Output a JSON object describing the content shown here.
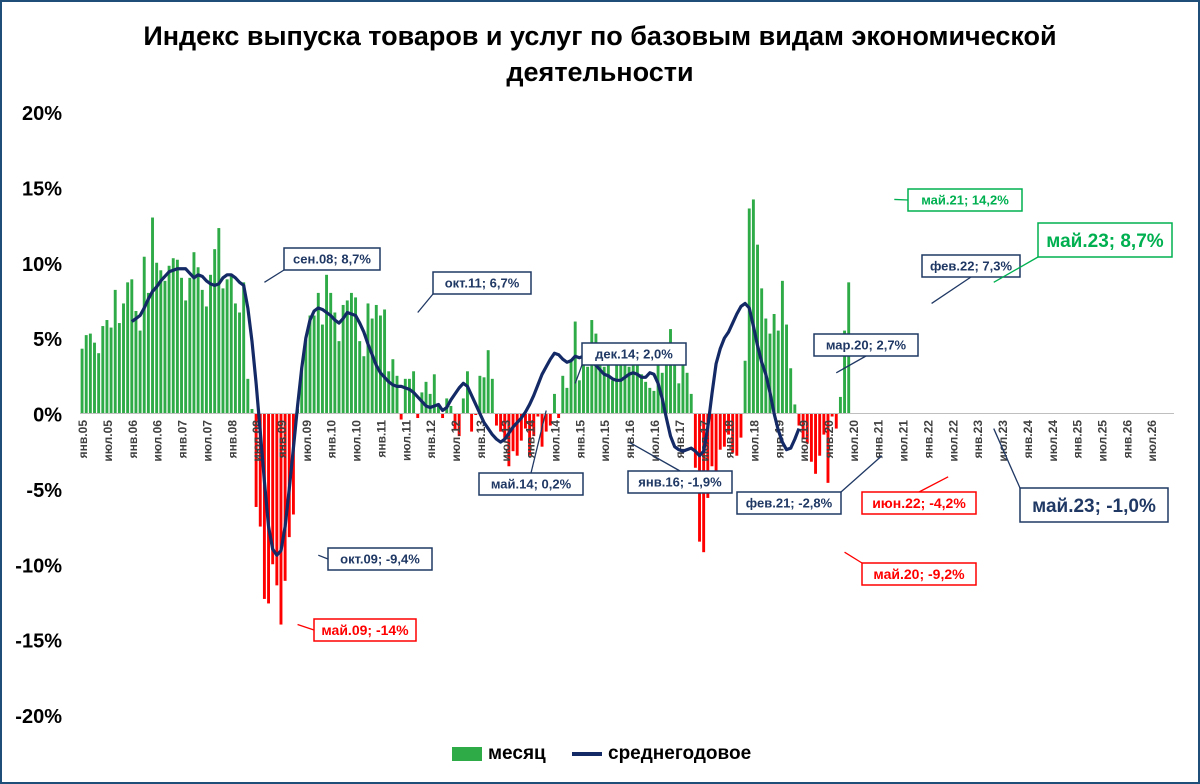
{
  "chart_data": {
    "type": "bar",
    "title_lines": [
      "Индекс выпуска товаров и услуг по базовым видам экономической",
      "деятельности"
    ],
    "ylim": [
      -20,
      20
    ],
    "yticks": [
      20,
      15,
      10,
      5,
      0,
      -5,
      -10,
      -15,
      -20
    ],
    "ytick_labels": [
      "20%",
      "15%",
      "10%",
      "5%",
      "0%",
      "-5%",
      "-10%",
      "-15%",
      "-20%"
    ],
    "grid": false,
    "legend_position": "bottom",
    "x_start": "янв.05",
    "x_labels": [
      "янв.05",
      "июл.05",
      "янв.06",
      "июл.06",
      "янв.07",
      "июл.07",
      "янв.08",
      "июл.08",
      "янв.09",
      "июл.09",
      "янв.10",
      "июл.10",
      "янв.11",
      "июл.11",
      "янв.12",
      "июл.12",
      "янв.13",
      "июл.13",
      "янв.14",
      "июл.14",
      "янв.15",
      "июл.15",
      "янв.16",
      "июл.16",
      "янв.17",
      "июл.17",
      "янв.18",
      "июл.18",
      "янв.19",
      "июл.19",
      "янв.20",
      "июл.20",
      "янв.21",
      "июл.21",
      "янв.22",
      "июл.22",
      "янв.23",
      "июл.23",
      "янв.24",
      "июл.24",
      "янв.25",
      "июл.25",
      "янв.26",
      "июл.26"
    ],
    "colors": {
      "positive": "#2eaa46",
      "negative": "#ff0000",
      "line": "#142a66",
      "green_callout": "#00b050",
      "red_callout": "#ff0000",
      "navy_callout": "#1f3864"
    },
    "series": [
      {
        "name": "месяц",
        "type": "bar",
        "values": [
          4.3,
          5.2,
          5.3,
          4.7,
          4.0,
          5.8,
          6.2,
          5.7,
          8.2,
          6.0,
          7.3,
          8.7,
          8.9,
          6.8,
          5.5,
          10.4,
          8.0,
          13.0,
          10.0,
          9.5,
          8.8,
          9.8,
          10.3,
          10.2,
          9.0,
          7.5,
          9.0,
          10.7,
          9.7,
          8.2,
          7.1,
          9.2,
          10.9,
          12.3,
          8.3,
          8.9,
          9.2,
          7.3,
          6.7,
          8.7,
          2.3,
          0.3,
          -6.2,
          -7.5,
          -12.3,
          -12.6,
          -10.0,
          -11.4,
          -14.0,
          -11.1,
          -8.2,
          -6.7,
          0.3,
          3.0,
          4.9,
          6.5,
          6.5,
          8.0,
          5.9,
          9.2,
          8.0,
          6.7,
          4.8,
          7.2,
          7.5,
          8.0,
          7.7,
          4.8,
          3.8,
          7.3,
          6.3,
          7.2,
          6.5,
          6.9,
          2.8,
          3.6,
          2.5,
          -0.4,
          2.3,
          2.3,
          2.8,
          -0.3,
          1.4,
          2.1,
          1.3,
          2.6,
          0.5,
          -0.3,
          1.0,
          0.5,
          -1.1,
          -1.5,
          1.0,
          2.8,
          -1.2,
          -0.1,
          2.5,
          2.4,
          4.2,
          2.3,
          -0.8,
          -1.2,
          -1.8,
          -3.5,
          -2.5,
          -2.8,
          -1.8,
          -1.0,
          -2.8,
          -1.5,
          -0.2,
          -2.2,
          -1.2,
          -0.8,
          1.3,
          -0.3,
          2.5,
          1.7,
          3.6,
          6.1,
          2.2,
          4.5,
          3.1,
          6.2,
          5.3,
          4.2,
          3.1,
          3.6,
          2.2,
          3.7,
          4.4,
          4.3,
          3.1,
          3.6,
          4.0,
          2.6,
          2.1,
          1.7,
          1.5,
          3.2,
          2.7,
          3.5,
          5.6,
          4.2,
          2.0,
          3.6,
          2.7,
          1.3,
          -3.6,
          -8.5,
          -9.2,
          -5.6,
          -3.5,
          -4.4,
          -2.4,
          -2.2,
          -1.4,
          -2.6,
          -2.8,
          -1.6,
          3.5,
          13.6,
          14.2,
          11.2,
          8.3,
          6.3,
          5.3,
          6.6,
          5.5,
          8.8,
          5.9,
          3.0,
          0.6,
          -0.8,
          -1.7,
          -2.0,
          -3.2,
          -4.0,
          -2.8,
          -1.4,
          -4.6,
          -0.2,
          -1.0,
          1.1,
          5.5,
          8.7
        ]
      },
      {
        "name": "среднегодовое",
        "type": "line",
        "start_index": 12,
        "values": [
          6.1,
          6.3,
          6.5,
          7.0,
          7.6,
          8.1,
          8.4,
          8.8,
          9.1,
          9.4,
          9.5,
          9.6,
          9.6,
          9.6,
          9.3,
          9.0,
          9.2,
          9.1,
          8.8,
          8.6,
          8.5,
          8.6,
          9.0,
          9.2,
          9.2,
          9.0,
          8.7,
          8.5,
          7.0,
          4.8,
          2.0,
          -1.2,
          -4.5,
          -7.5,
          -9.0,
          -9.4,
          -9.1,
          -7.5,
          -5.0,
          -2.3,
          0.5,
          3.0,
          5.0,
          6.2,
          6.8,
          7.0,
          6.9,
          6.7,
          6.5,
          6.2,
          6.0,
          6.3,
          6.7,
          6.6,
          6.5,
          6.0,
          5.4,
          4.6,
          3.9,
          3.2,
          2.7,
          2.4,
          2.1,
          1.9,
          1.8,
          1.8,
          1.7,
          1.6,
          1.4,
          1.1,
          0.8,
          0.5,
          0.4,
          0.5,
          0.6,
          0.2,
          0.4,
          0.9,
          1.3,
          1.7,
          2.0,
          1.8,
          1.2,
          0.6,
          0.0,
          -0.6,
          -1.0,
          -1.4,
          -1.7,
          -1.9,
          -1.7,
          -1.3,
          -0.9,
          -0.6,
          -0.3,
          0.1,
          0.6,
          1.2,
          1.9,
          2.6,
          3.1,
          3.6,
          4.0,
          3.9,
          3.6,
          3.4,
          3.5,
          3.8,
          3.7,
          3.8,
          3.6,
          3.4,
          3.2,
          2.9,
          2.6,
          2.5,
          2.3,
          2.2,
          2.2,
          2.4,
          2.6,
          2.7,
          2.6,
          2.4,
          2.4,
          2.7,
          2.6,
          2.0,
          1.0,
          -0.3,
          -1.5,
          -2.2,
          -2.4,
          -2.5,
          -2.4,
          -2.3,
          -2.5,
          -2.8,
          -2.5,
          -0.9,
          1.3,
          3.3,
          4.3,
          5.0,
          5.4,
          6.0,
          6.6,
          7.1,
          7.3,
          7.0,
          5.8,
          4.5,
          3.4,
          2.6,
          1.4,
          0.0,
          -1.1,
          -1.9,
          -2.4,
          -2.3,
          -1.7,
          -1.0
        ]
      }
    ],
    "annotations": [
      {
        "text": "сен.08; 8,7%",
        "index": 44,
        "value": 8.7,
        "color": "navy"
      },
      {
        "text": "окт.09; -9,4%",
        "index": 57,
        "value": -9.4,
        "color": "navy"
      },
      {
        "text": "май.09; -14%",
        "index": 52,
        "value": -14.0,
        "color": "red"
      },
      {
        "text": "окт.11; 6,7%",
        "index": 81,
        "value": 6.7,
        "color": "navy"
      },
      {
        "text": "май.14; 0,2%",
        "index": 112,
        "value": 0.2,
        "color": "navy"
      },
      {
        "text": "дек.14; 2,0%",
        "index": 119,
        "value": 2.0,
        "color": "navy"
      },
      {
        "text": "янв.16; -1,9%",
        "index": 132,
        "value": -1.9,
        "color": "navy"
      },
      {
        "text": "мар.20; 2,7%",
        "index": 182,
        "value": 2.7,
        "color": "navy"
      },
      {
        "text": "май.20; -9,2%",
        "index": 184,
        "value": -9.2,
        "color": "red"
      },
      {
        "text": "фев.21; -2,8%",
        "index": 193,
        "value": -2.8,
        "color": "navy"
      },
      {
        "text": "май.21; 14,2%",
        "index": 196,
        "value": 14.2,
        "color": "green"
      },
      {
        "text": "фев.22; 7,3%",
        "index": 205,
        "value": 7.3,
        "color": "navy"
      },
      {
        "text": "июн.22; -4,2%",
        "index": 209,
        "value": -4.2,
        "color": "red"
      },
      {
        "text": "май.23; 8,7%",
        "index": 220,
        "value": 8.7,
        "color": "green"
      },
      {
        "text": "май.23; -1,0%",
        "index": 220,
        "value": -1.0,
        "color": "navy"
      }
    ]
  }
}
